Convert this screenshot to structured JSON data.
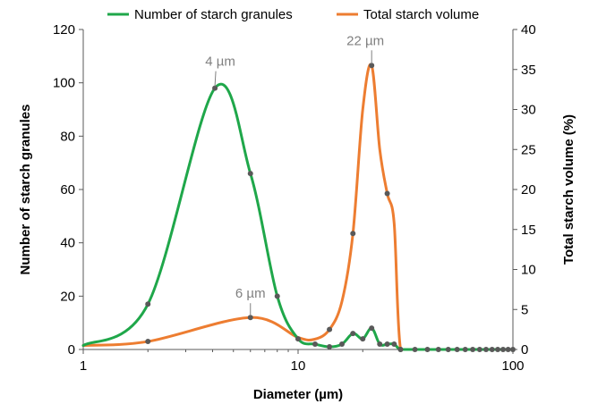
{
  "chart_data": {
    "type": "line",
    "title": "",
    "xlabel": "Diameter (µm)",
    "ylabel": "Number of starch granules",
    "y2label": "Total starch volume (%)",
    "x_scale": "log",
    "xlim": [
      1,
      100
    ],
    "ylim": [
      0,
      120
    ],
    "y2lim": [
      0,
      40
    ],
    "x_ticks": [
      1,
      10,
      100
    ],
    "x_tick_labels": [
      "1",
      "10",
      "100"
    ],
    "y_ticks": [
      0,
      20,
      40,
      60,
      80,
      100,
      120
    ],
    "y_tick_labels": [
      "0",
      "20",
      "40",
      "60",
      "80",
      "100",
      "120"
    ],
    "y2_ticks": [
      0,
      5,
      10,
      15,
      20,
      25,
      30,
      35,
      40
    ],
    "y2_tick_labels": [
      "0",
      "5",
      "10",
      "15",
      "20",
      "25",
      "30",
      "35",
      "40"
    ],
    "grid": false,
    "legend_position": "top",
    "series": [
      {
        "name": "Number of starch granules",
        "axis": "left",
        "color": "#1fa74a",
        "x": [
          1,
          2,
          4.1,
          6,
          8,
          10,
          12,
          14,
          16,
          18,
          20,
          22,
          24,
          26,
          28,
          30,
          35,
          40,
          50,
          60,
          70,
          80,
          90,
          100
        ],
        "y": [
          1.5,
          17,
          98,
          66,
          20,
          4,
          2,
          1,
          2,
          6,
          4,
          8,
          2,
          2,
          2,
          0,
          0,
          0,
          0,
          0,
          0,
          0,
          0,
          0
        ],
        "markers": [
          2,
          4.1,
          6,
          8,
          10,
          12,
          14,
          16,
          18,
          20,
          22,
          24,
          26,
          28,
          30,
          35,
          40,
          45,
          50,
          55,
          60,
          65,
          70,
          75,
          80,
          85,
          90,
          95,
          100
        ]
      },
      {
        "name": "Total starch volume",
        "axis": "right",
        "color": "#ed7d31",
        "x": [
          1,
          2,
          6,
          10,
          12,
          14,
          16,
          18,
          20,
          22,
          24,
          26,
          28,
          30,
          35,
          40,
          50,
          60,
          70,
          80,
          90,
          100
        ],
        "y": [
          0.5,
          1,
          4,
          1.5,
          1.3,
          2.5,
          6,
          14.5,
          30,
          35.5,
          25,
          19.5,
          15.8,
          0,
          0,
          0,
          0,
          0,
          0,
          0,
          0,
          0
        ],
        "markers": [
          2,
          6,
          14,
          18,
          22,
          26,
          30
        ]
      }
    ],
    "annotations": [
      {
        "text": "4 µm",
        "series": "Number of starch granules",
        "x": 4.1,
        "y": 98
      },
      {
        "text": "6 µm",
        "series": "Total starch volume",
        "x": 6,
        "y": 4
      },
      {
        "text": "22 µm",
        "series": "Total starch volume",
        "x": 22,
        "y": 35.5
      }
    ]
  }
}
